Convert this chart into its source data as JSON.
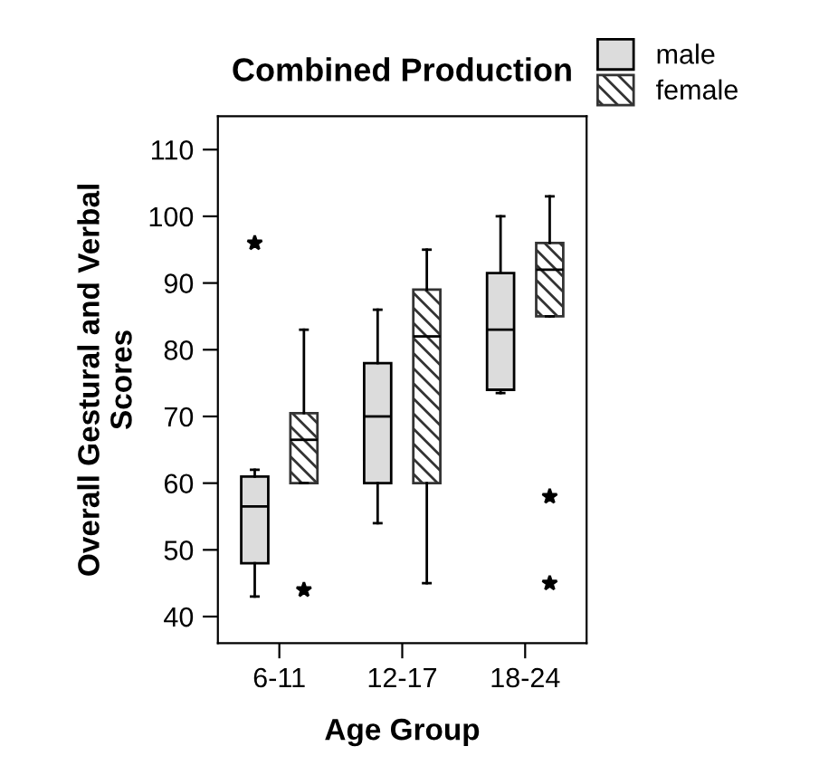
{
  "chart_data": {
    "type": "box",
    "title": "Combined Production",
    "xlabel": "Age Group",
    "ylabel": "Overall Gestural and Verbal\nScores",
    "categories": [
      "6-11",
      "12-17",
      "18-24"
    ],
    "ylim": [
      36,
      115
    ],
    "yticks": [
      40,
      50,
      60,
      70,
      80,
      90,
      100,
      110
    ],
    "grid": false,
    "legend": "top right",
    "series": [
      {
        "name": "male",
        "color": "#dcdcdc",
        "boxes": [
          {
            "low": 43,
            "q1": 48,
            "median": 56.5,
            "q3": 61,
            "high": 62,
            "outliers": [
              96
            ]
          },
          {
            "low": 54,
            "q1": 60,
            "median": 70,
            "q3": 78,
            "high": 86
          },
          {
            "low": 73.5,
            "q1": 74,
            "median": 83,
            "q3": 91.5,
            "high": 100
          }
        ]
      },
      {
        "name": "female",
        "color": "#333333",
        "boxes": [
          {
            "low": 60,
            "q1": 60,
            "median": 66.5,
            "q3": 70.5,
            "high": 83,
            "outliers": [
              44
            ]
          },
          {
            "low": 45,
            "q1": 60,
            "median": 82,
            "q3": 89,
            "high": 95
          },
          {
            "low": 85,
            "q1": 85,
            "median": 92,
            "q3": 96,
            "high": 103,
            "outliers": [
              58,
              45
            ]
          }
        ]
      }
    ]
  }
}
